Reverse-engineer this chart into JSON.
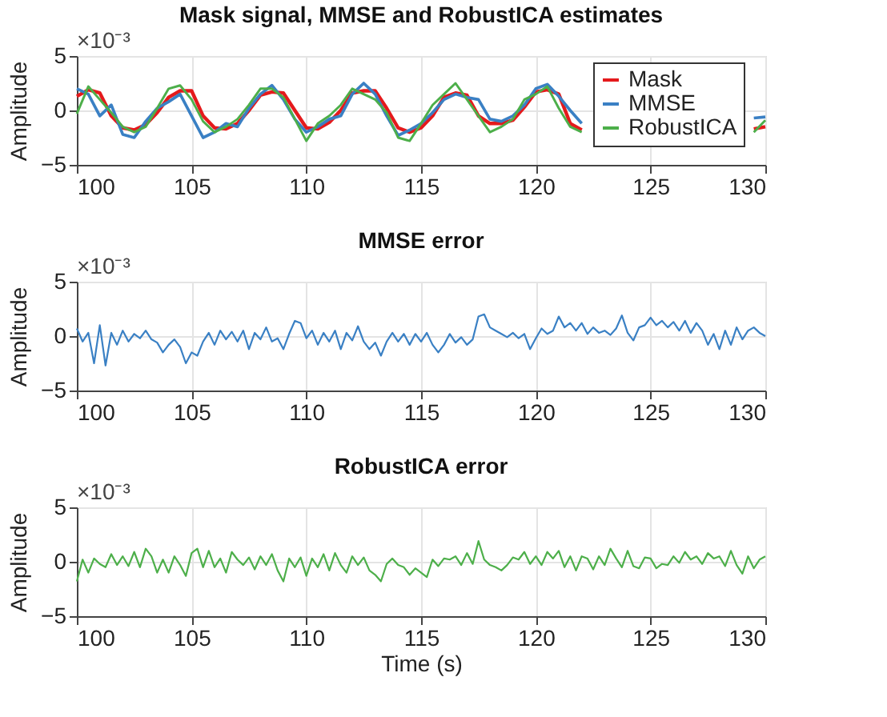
{
  "chart_data": [
    {
      "type": "line",
      "title": "Mask signal, MMSE and RobustICA estimates",
      "ylabel": "Amplitude",
      "annotations": [
        "×10⁻³"
      ],
      "xlim": [
        100,
        130
      ],
      "xticks": [
        100,
        105,
        110,
        115,
        120,
        125,
        130
      ],
      "ylim": [
        -5,
        5
      ],
      "yticks": [
        -5,
        0,
        5
      ],
      "grid": true,
      "legend": "top right",
      "x": [
        100,
        100.5,
        101,
        101.5,
        102,
        102.5,
        103,
        103.5,
        104,
        104.5,
        105,
        105.5,
        106,
        106.5,
        107,
        107.5,
        108,
        108.5,
        109,
        109.5,
        110,
        110.5,
        111,
        111.5,
        112,
        112.5,
        113,
        113.5,
        114,
        114.5,
        115,
        115.5,
        116,
        116.5,
        117,
        117.5,
        118,
        118.5,
        119,
        119.5,
        120,
        120.5,
        121,
        121.5,
        122,
        122.5,
        129.5,
        130
      ],
      "series": [
        {
          "name": "Mask",
          "color": "#e41a1c",
          "values": [
            1.3,
            1.9,
            1.6,
            -0.5,
            -1.6,
            -1.8,
            -1.3,
            -0.2,
            1.2,
            1.8,
            1.8,
            -0.5,
            -1.6,
            -1.7,
            -1.2,
            0,
            1.4,
            1.7,
            1.6,
            0,
            -1.6,
            -1.7,
            -1.1,
            0,
            1.6,
            1.8,
            1.8,
            0.2,
            -1.6,
            -2.0,
            -1.6,
            -0.5,
            1.2,
            1.6,
            1.4,
            -0.5,
            -1.2,
            -1.2,
            -0.9,
            0.3,
            1.7,
            1.9,
            1.5,
            -1.2,
            -1.8,
            null,
            -1.7,
            -1.5
          ]
        },
        {
          "name": "MMSE",
          "color": "#3a80c4",
          "values": [
            2.0,
            1.5,
            -0.5,
            0.5,
            -2.2,
            -2.5,
            -1.0,
            0.2,
            0.8,
            1.5,
            -0.5,
            -2.5,
            -2.0,
            -1.2,
            -1.5,
            0.2,
            1.5,
            2.3,
            1.0,
            -0.8,
            -2.0,
            -1.5,
            -0.8,
            -0.5,
            1.5,
            2.5,
            1.5,
            -0.5,
            -2.3,
            -1.8,
            -1.2,
            -0.2,
            1.0,
            1.5,
            1.2,
            1.0,
            -0.8,
            -1.0,
            -0.5,
            0.5,
            2.0,
            2.4,
            1.3,
            0,
            -1.2,
            null,
            -0.7,
            -0.6
          ]
        },
        {
          "name": "RobustICA",
          "color": "#4daf4a",
          "values": [
            -0.3,
            2.2,
            1.0,
            -0.2,
            -1.5,
            -2.0,
            -1.5,
            0.2,
            2.0,
            2.3,
            1.0,
            -1.0,
            -2.0,
            -1.5,
            -0.8,
            0.5,
            2.0,
            2.0,
            1.2,
            -0.8,
            -2.8,
            -1.2,
            -0.5,
            0.5,
            2.0,
            1.5,
            1.0,
            -0.2,
            -2.5,
            -2.8,
            -1.2,
            0.5,
            1.5,
            2.5,
            1.0,
            -0.5,
            -2.0,
            -1.5,
            -0.8,
            1.0,
            1.5,
            2.2,
            0.2,
            -1.5,
            -2.0,
            null,
            -2.0,
            -0.9
          ]
        }
      ]
    },
    {
      "type": "line",
      "title": "MMSE error",
      "ylabel": "Amplitude",
      "annotations": [
        "×10⁻³"
      ],
      "xlim": [
        100,
        130
      ],
      "xticks": [
        100,
        105,
        110,
        115,
        120,
        125,
        130
      ],
      "ylim": [
        -5,
        5
      ],
      "yticks": [
        -5,
        0,
        5
      ],
      "grid": true,
      "x": [
        100,
        100.25,
        100.5,
        100.75,
        101,
        101.25,
        101.5,
        101.75,
        102,
        102.25,
        102.5,
        102.75,
        103,
        103.25,
        103.5,
        103.75,
        104,
        104.25,
        104.5,
        104.75,
        105,
        105.25,
        105.5,
        105.75,
        106,
        106.25,
        106.5,
        106.75,
        107,
        107.25,
        107.5,
        107.75,
        108,
        108.25,
        108.5,
        108.75,
        109,
        109.25,
        109.5,
        109.75,
        110,
        110.25,
        110.5,
        110.75,
        111,
        111.25,
        111.5,
        111.75,
        112,
        112.25,
        112.5,
        112.75,
        113,
        113.25,
        113.5,
        113.75,
        114,
        114.25,
        114.5,
        114.75,
        115,
        115.25,
        115.5,
        115.75,
        116,
        116.25,
        116.5,
        116.75,
        117,
        117.25,
        117.5,
        117.75,
        118,
        118.25,
        118.5,
        118.75,
        119,
        119.25,
        119.5,
        119.75,
        120,
        120.25,
        120.5,
        120.75,
        121,
        121.25,
        121.5,
        121.75,
        122,
        122.25,
        122.5,
        122.75,
        123,
        123.25,
        123.5,
        123.75,
        124,
        124.25,
        124.5,
        124.75,
        125,
        125.25,
        125.5,
        125.75,
        126,
        126.25,
        126.5,
        126.75,
        127,
        127.25,
        127.5,
        127.75,
        128,
        128.25,
        128.5,
        128.75,
        129,
        129.25,
        129.5,
        129.75,
        130
      ],
      "series": [
        {
          "color": "#3a80c4",
          "values": [
            0.7,
            -0.5,
            0.3,
            -2.5,
            1.0,
            -2.7,
            0.3,
            -0.8,
            0.5,
            -0.5,
            0.2,
            -0.2,
            0.5,
            -0.3,
            -0.6,
            -1.5,
            -0.8,
            -0.3,
            -1.0,
            -2.5,
            -1.5,
            -1.8,
            -0.5,
            0.3,
            -0.8,
            0.5,
            -0.3,
            0.4,
            -0.5,
            0.5,
            -1.2,
            0.3,
            -0.3,
            0.8,
            -0.5,
            -0.2,
            -1.2,
            0.2,
            1.4,
            1.2,
            -0.2,
            0.5,
            -0.8,
            0.3,
            -0.5,
            0.5,
            -1.2,
            0.3,
            -0.4,
            0.9,
            -0.5,
            -1.2,
            -0.6,
            -1.8,
            -0.5,
            0.3,
            -0.5,
            0.2,
            -0.8,
            0.2,
            -0.5,
            0.3,
            -0.8,
            -1.5,
            -0.8,
            0.2,
            -0.6,
            -0.1,
            -0.8,
            -0.3,
            1.8,
            2.0,
            0.8,
            0.5,
            0.2,
            -0.1,
            0.3,
            -0.2,
            0.2,
            -1.2,
            -0.2,
            0.7,
            0.2,
            0.5,
            1.8,
            0.8,
            1.2,
            0.5,
            1.2,
            0.2,
            0.8,
            0.3,
            0.5,
            0.1,
            0.7,
            1.9,
            0.3,
            -0.4,
            0.8,
            1.0,
            1.7,
            1.0,
            1.4,
            0.8,
            1.3,
            0.5,
            1.4,
            0.3,
            1.2,
            0.5,
            -0.8,
            0.2,
            -1.2,
            0.5,
            -0.8,
            0.8,
            -0.3,
            0.5,
            0.8,
            0.3,
            0
          ]
        }
      ]
    },
    {
      "type": "line",
      "title": "RobustICA error",
      "xlabel": "Time (s)",
      "ylabel": "Amplitude",
      "annotations": [
        "×10⁻³"
      ],
      "xlim": [
        100,
        130
      ],
      "xticks": [
        100,
        105,
        110,
        115,
        120,
        125,
        130
      ],
      "ylim": [
        -5,
        5
      ],
      "yticks": [
        -5,
        0,
        5
      ],
      "grid": true,
      "x": [
        100,
        100.25,
        100.5,
        100.75,
        101,
        101.25,
        101.5,
        101.75,
        102,
        102.25,
        102.5,
        102.75,
        103,
        103.25,
        103.5,
        103.75,
        104,
        104.25,
        104.5,
        104.75,
        105,
        105.25,
        105.5,
        105.75,
        106,
        106.25,
        106.5,
        106.75,
        107,
        107.25,
        107.5,
        107.75,
        108,
        108.25,
        108.5,
        108.75,
        109,
        109.25,
        109.5,
        109.75,
        110,
        110.25,
        110.5,
        110.75,
        111,
        111.25,
        111.5,
        111.75,
        112,
        112.25,
        112.5,
        112.75,
        113,
        113.25,
        113.5,
        113.75,
        114,
        114.25,
        114.5,
        114.75,
        115,
        115.25,
        115.5,
        115.75,
        116,
        116.25,
        116.5,
        116.75,
        117,
        117.25,
        117.5,
        117.75,
        118,
        118.25,
        118.5,
        118.75,
        119,
        119.25,
        119.5,
        119.75,
        120,
        120.25,
        120.5,
        120.75,
        121,
        121.25,
        121.5,
        121.75,
        122,
        122.25,
        122.5,
        122.75,
        123,
        123.25,
        123.5,
        123.75,
        124,
        124.25,
        124.5,
        124.75,
        125,
        125.25,
        125.5,
        125.75,
        126,
        126.25,
        126.5,
        126.75,
        127,
        127.25,
        127.5,
        127.75,
        128,
        128.25,
        128.5,
        128.75,
        129,
        129.25,
        129.5,
        129.75,
        130
      ],
      "series": [
        {
          "color": "#4daf4a",
          "values": [
            -1.8,
            0.2,
            -1.0,
            0.3,
            -0.2,
            -0.5,
            0.7,
            -0.3,
            0.5,
            -0.4,
            0.9,
            -0.5,
            1.2,
            0.5,
            -1.0,
            0.2,
            -1.0,
            0.5,
            -0.3,
            -1.3,
            0.8,
            1.2,
            -0.5,
            1.0,
            -0.5,
            0.3,
            -1.0,
            0.9,
            0.2,
            -0.3,
            0.4,
            -0.7,
            0.5,
            -0.3,
            0.7,
            -0.8,
            -1.8,
            0.3,
            -0.5,
            0.4,
            -1.3,
            0.3,
            -0.5,
            0.7,
            -0.8,
            0.8,
            -0.3,
            -1.0,
            0.5,
            -0.3,
            0.4,
            -0.8,
            -1.2,
            -1.8,
            -0.2,
            0.3,
            -0.3,
            -0.5,
            -1.2,
            -0.6,
            -1.0,
            -1.4,
            0.2,
            -0.4,
            0.3,
            0.2,
            0.5,
            -0.3,
            0.8,
            -0.2,
            1.9,
            0.2,
            -0.3,
            -0.5,
            -0.8,
            -0.3,
            0.4,
            0.2,
            0.9,
            -0.2,
            0.5,
            -0.3,
            0.9,
            0.3,
            1.0,
            -0.5,
            0.5,
            -0.8,
            0.5,
            0.3,
            -0.7,
            0.5,
            -0.3,
            1.2,
            0.3,
            -0.5,
            1.0,
            -0.4,
            -0.6,
            0.4,
            0.3,
            -0.6,
            -0.2,
            -0.3,
            0.5,
            -0.1,
            0.9,
            0.2,
            0.5,
            -0.2,
            0.8,
            0.3,
            0.5,
            -0.4,
            1.0,
            -0.3,
            -1.1,
            0.5,
            -0.6,
            0.2,
            0.5
          ]
        }
      ]
    }
  ]
}
